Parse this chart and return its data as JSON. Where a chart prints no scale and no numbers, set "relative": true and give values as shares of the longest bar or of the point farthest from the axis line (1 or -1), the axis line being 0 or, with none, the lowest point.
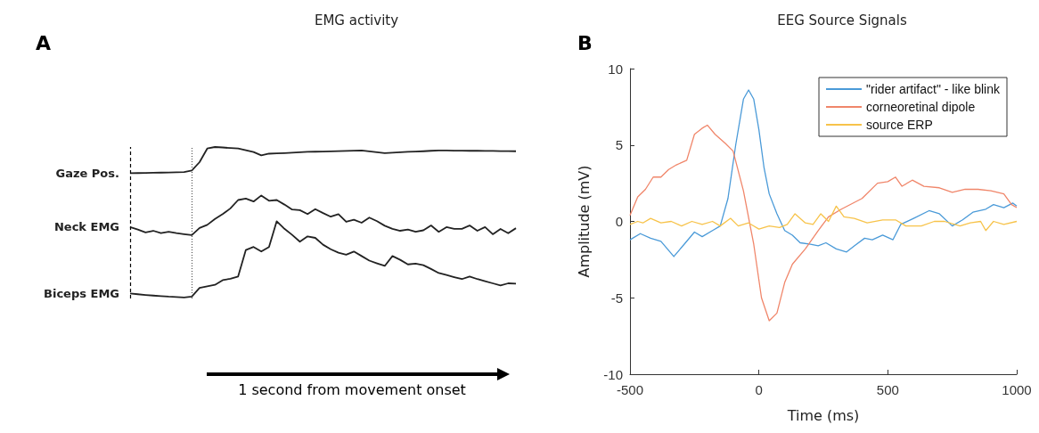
{
  "chart_data": [
    {
      "type": "line",
      "title": "EMG activity",
      "relative": true,
      "legend": false,
      "grid": false,
      "categories": [
        null,
        null,
        null,
        null,
        null,
        null,
        null,
        null,
        null,
        null,
        null,
        null,
        null,
        null,
        null,
        null,
        null,
        null,
        null,
        null,
        null,
        null,
        null,
        null,
        null,
        null,
        null,
        null,
        null,
        null,
        null,
        null,
        null,
        null,
        null,
        null,
        null,
        null,
        null,
        null,
        null,
        null,
        null,
        null,
        null,
        null,
        null,
        null,
        null,
        null,
        null
      ],
      "annotations": [
        "A",
        "1 second from movement onset"
      ],
      "series": [
        {
          "name": "Gaze Pos.",
          "color": "#222222",
          "values": [
            0.827,
            0.828,
            0.829,
            0.83,
            0.831,
            0.832,
            0.833,
            0.835,
            0.845,
            0.9,
            0.99,
            1.0,
            0.997,
            0.993,
            0.99,
            0.978,
            0.967,
            0.945,
            0.956,
            0.958,
            0.96,
            0.963,
            0.966,
            0.968,
            0.969,
            0.97,
            0.971,
            0.973,
            0.974,
            0.976,
            0.977,
            0.971,
            0.966,
            0.96,
            0.963,
            0.965,
            0.968,
            0.97,
            0.972,
            0.975,
            0.977,
            0.977,
            0.976,
            0.976,
            0.975,
            0.975,
            0.974,
            0.974,
            0.973,
            0.973,
            0.972
          ]
        },
        {
          "name": "Neck EMG",
          "color": "#222222",
          "values": [
            0.471,
            0.455,
            0.436,
            0.447,
            0.431,
            0.44,
            0.431,
            0.424,
            0.418,
            0.465,
            0.486,
            0.525,
            0.557,
            0.595,
            0.65,
            0.66,
            0.64,
            0.68,
            0.645,
            0.65,
            0.62,
            0.587,
            0.583,
            0.557,
            0.59,
            0.564,
            0.54,
            0.557,
            0.506,
            0.52,
            0.5,
            0.534,
            0.51,
            0.48,
            0.46,
            0.447,
            0.455,
            0.44,
            0.45,
            0.482,
            0.44,
            0.471,
            0.46,
            0.46,
            0.482,
            0.447,
            0.471,
            0.424,
            0.459,
            0.431,
            0.464
          ]
        },
        {
          "name": "Biceps EMG",
          "color": "#222222",
          "values": [
            0.033,
            0.028,
            0.023,
            0.019,
            0.016,
            0.012,
            0.01,
            0.007,
            0.012,
            0.07,
            0.08,
            0.09,
            0.121,
            0.13,
            0.145,
            0.32,
            0.34,
            0.31,
            0.34,
            0.51,
            0.46,
            0.42,
            0.375,
            0.41,
            0.4,
            0.355,
            0.325,
            0.302,
            0.289,
            0.31,
            0.28,
            0.25,
            0.232,
            0.215,
            0.28,
            0.255,
            0.225,
            0.23,
            0.22,
            0.195,
            0.168,
            0.155,
            0.141,
            0.128,
            0.145,
            0.128,
            0.114,
            0.1,
            0.086,
            0.1,
            0.098
          ]
        }
      ]
    },
    {
      "type": "line",
      "title": "EEG Source Signals",
      "xlabel": "Time (ms)",
      "ylabel": "Amplitude (mV)",
      "xlim": [
        -500,
        1000
      ],
      "xticks": [
        -500,
        0,
        500,
        1000
      ],
      "ylim": [
        -10,
        10
      ],
      "yticks": [
        -10,
        -5,
        0,
        5,
        10
      ],
      "grid": false,
      "legend": "top right",
      "annotations": [
        "B"
      ],
      "series": [
        {
          "name": "\"rider artifact\" - like blink",
          "color": "#4a9ad8",
          "x": [
            -500,
            -460,
            -420,
            -380,
            -330,
            -290,
            -250,
            -220,
            -180,
            -150,
            -120,
            -90,
            -60,
            -40,
            -20,
            0,
            20,
            40,
            70,
            100,
            130,
            160,
            200,
            230,
            260,
            300,
            340,
            370,
            410,
            440,
            480,
            520,
            550,
            600,
            660,
            700,
            750,
            790,
            830,
            880,
            910,
            950,
            985,
            1000
          ],
          "values": [
            -1.2,
            -0.8,
            -1.1,
            -1.3,
            -2.3,
            -1.5,
            -0.7,
            -1.0,
            -0.6,
            -0.3,
            1.5,
            5,
            8,
            8.6,
            8,
            6,
            3.5,
            1.8,
            0.5,
            -0.6,
            -0.9,
            -1.4,
            -1.5,
            -1.6,
            -1.4,
            -1.8,
            -2.0,
            -1.6,
            -1.1,
            -1.2,
            -0.9,
            -1.2,
            -0.2,
            0.2,
            0.7,
            0.5,
            -0.3,
            0.1,
            0.6,
            0.8,
            1.1,
            0.9,
            1.2,
            1.0
          ]
        },
        {
          "name": "corneoretinal dipole",
          "color": "#f0866a",
          "x": [
            -500,
            -470,
            -440,
            -410,
            -380,
            -350,
            -320,
            -280,
            -250,
            -220,
            -200,
            -170,
            -130,
            -100,
            -60,
            -20,
            10,
            40,
            70,
            100,
            130,
            180,
            230,
            270,
            320,
            400,
            460,
            500,
            530,
            555,
            595,
            640,
            700,
            750,
            800,
            850,
            900,
            950,
            980,
            1000
          ],
          "values": [
            0.4,
            1.6,
            2.1,
            2.9,
            2.9,
            3.4,
            3.7,
            4.0,
            5.7,
            6.1,
            6.3,
            5.7,
            5.1,
            4.6,
            2,
            -1.5,
            -5,
            -6.5,
            -6,
            -4,
            -2.8,
            -1.8,
            -0.6,
            0.3,
            0.8,
            1.5,
            2.5,
            2.6,
            2.9,
            2.3,
            2.7,
            2.3,
            2.2,
            1.9,
            2.1,
            2.1,
            2.0,
            1.8,
            1.1,
            0.9
          ]
        },
        {
          "name": "source ERP",
          "color": "#f7c34a",
          "x": [
            -500,
            -470,
            -450,
            -420,
            -380,
            -340,
            -300,
            -260,
            -220,
            -180,
            -150,
            -110,
            -80,
            -40,
            0,
            40,
            80,
            110,
            140,
            180,
            210,
            240,
            270,
            300,
            330,
            370,
            420,
            480,
            530,
            570,
            630,
            680,
            720,
            780,
            820,
            860,
            880,
            910,
            950,
            1000
          ],
          "values": [
            -0.2,
            0.0,
            -0.1,
            0.2,
            -0.1,
            0.0,
            -0.3,
            0.0,
            -0.2,
            0.0,
            -0.3,
            0.2,
            -0.3,
            -0.1,
            -0.5,
            -0.3,
            -0.4,
            -0.2,
            0.5,
            -0.1,
            -0.2,
            0.5,
            0.0,
            1.0,
            0.3,
            0.2,
            -0.1,
            0.1,
            0.1,
            -0.3,
            -0.3,
            0.0,
            0.0,
            -0.3,
            -0.1,
            0.0,
            -0.6,
            0.0,
            -0.2,
            0.0
          ]
        }
      ]
    }
  ]
}
